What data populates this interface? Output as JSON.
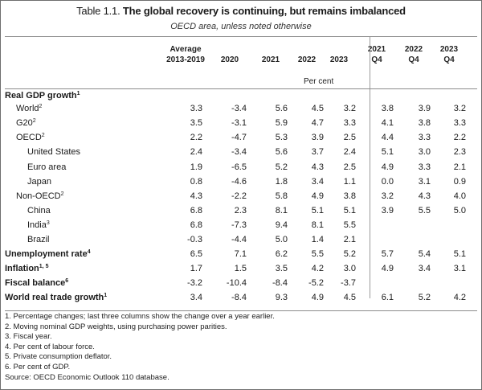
{
  "title": {
    "number": "Table 1.1.",
    "text": "The global recovery is continuing, but remains imbalanced"
  },
  "subtitle": "OECD area, unless noted otherwise",
  "columns": [
    {
      "line1": "Average",
      "line2": "2013-2019"
    },
    {
      "line1": "",
      "line2": "2020"
    },
    {
      "line1": "",
      "line2": "2021"
    },
    {
      "line1": "",
      "line2": "2022"
    },
    {
      "line1": "",
      "line2": "2023"
    },
    {
      "line1": "2021",
      "line2": "Q4"
    },
    {
      "line1": "2022",
      "line2": "Q4"
    },
    {
      "line1": "2023",
      "line2": "Q4"
    }
  ],
  "unit": "Per cent",
  "rows": [
    {
      "label": "Real GDP growth",
      "sup": "1",
      "bold": true,
      "indent": 0,
      "values": [
        "",
        "",
        "",
        "",
        "",
        "",
        "",
        ""
      ]
    },
    {
      "label": "World",
      "sup": "2",
      "bold": false,
      "indent": 1,
      "values": [
        "3.3",
        "-3.4",
        "5.6",
        "4.5",
        "3.2",
        "3.8",
        "3.9",
        "3.2"
      ]
    },
    {
      "label": "G20",
      "sup": "2",
      "bold": false,
      "indent": 1,
      "values": [
        "3.5",
        "-3.1",
        "5.9",
        "4.7",
        "3.3",
        "4.1",
        "3.8",
        "3.3"
      ]
    },
    {
      "label": "OECD",
      "sup": "2",
      "bold": false,
      "indent": 1,
      "values": [
        "2.2",
        "-4.7",
        "5.3",
        "3.9",
        "2.5",
        "4.4",
        "3.3",
        "2.2"
      ]
    },
    {
      "label": "United States",
      "sup": "",
      "bold": false,
      "indent": 2,
      "values": [
        "2.4",
        "-3.4",
        "5.6",
        "3.7",
        "2.4",
        "5.1",
        "3.0",
        "2.3"
      ]
    },
    {
      "label": "Euro area",
      "sup": "",
      "bold": false,
      "indent": 2,
      "values": [
        "1.9",
        "-6.5",
        "5.2",
        "4.3",
        "2.5",
        "4.9",
        "3.3",
        "2.1"
      ]
    },
    {
      "label": "Japan",
      "sup": "",
      "bold": false,
      "indent": 2,
      "values": [
        "0.8",
        "-4.6",
        "1.8",
        "3.4",
        "1.1",
        "0.0",
        "3.1",
        "0.9"
      ]
    },
    {
      "label": "Non-OECD",
      "sup": "2",
      "bold": false,
      "indent": 1,
      "values": [
        "4.3",
        "-2.2",
        "5.8",
        "4.9",
        "3.8",
        "3.2",
        "4.3",
        "4.0"
      ]
    },
    {
      "label": "China",
      "sup": "",
      "bold": false,
      "indent": 2,
      "values": [
        "6.8",
        "2.3",
        "8.1",
        "5.1",
        "5.1",
        "3.9",
        "5.5",
        "5.0"
      ]
    },
    {
      "label": "India",
      "sup": "3",
      "bold": false,
      "indent": 2,
      "values": [
        "6.8",
        "-7.3",
        "9.4",
        "8.1",
        "5.5",
        "",
        "",
        ""
      ]
    },
    {
      "label": "Brazil",
      "sup": "",
      "bold": false,
      "indent": 2,
      "values": [
        "-0.3",
        "-4.4",
        "5.0",
        "1.4",
        "2.1",
        "",
        "",
        ""
      ]
    },
    {
      "label": "Unemployment rate",
      "sup": "4",
      "bold": true,
      "indent": 0,
      "values": [
        "6.5",
        "7.1",
        "6.2",
        "5.5",
        "5.2",
        "5.7",
        "5.4",
        "5.1"
      ]
    },
    {
      "label": "Inflation",
      "sup": "1, 5",
      "bold": true,
      "indent": 0,
      "values": [
        "1.7",
        "1.5",
        "3.5",
        "4.2",
        "3.0",
        "4.9",
        "3.4",
        "3.1"
      ]
    },
    {
      "label": "Fiscal balance",
      "sup": "6",
      "bold": true,
      "indent": 0,
      "values": [
        "-3.2",
        "-10.4",
        "-8.4",
        "-5.2",
        "-3.7",
        "",
        "",
        ""
      ]
    },
    {
      "label": "World real trade growth",
      "sup": "1",
      "bold": true,
      "indent": 0,
      "values": [
        "3.4",
        "-8.4",
        "9.3",
        "4.9",
        "4.5",
        "6.1",
        "5.2",
        "4.2"
      ]
    }
  ],
  "notes": [
    "1. Percentage changes; last three columns show the change over a year earlier.",
    "2. Moving nominal GDP weights, using purchasing power parities.",
    "3. Fiscal year.",
    "4. Per cent of labour force.",
    "5. Private consumption deflator.",
    "6. Per cent of GDP.",
    "Source: OECD Economic Outlook 110 database."
  ]
}
